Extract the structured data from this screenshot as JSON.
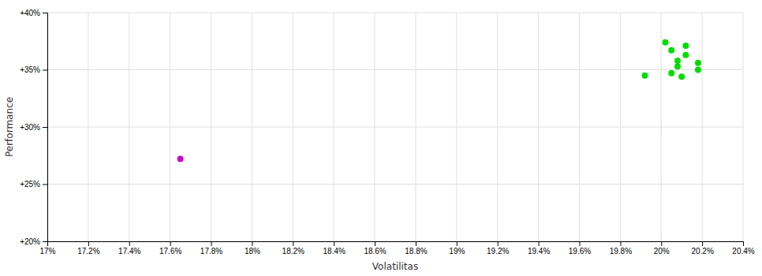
{
  "chart_data": {
    "type": "scatter",
    "xlabel": "Volatilitas",
    "ylabel": "Performance",
    "xlim": [
      0.17,
      0.204
    ],
    "ylim": [
      0.2,
      0.4
    ],
    "xticks": [
      {
        "value": 0.17,
        "label": "17%"
      },
      {
        "value": 0.172,
        "label": "17.2%"
      },
      {
        "value": 0.174,
        "label": "17.4%"
      },
      {
        "value": 0.176,
        "label": "17.6%"
      },
      {
        "value": 0.178,
        "label": "17.8%"
      },
      {
        "value": 0.18,
        "label": "18%"
      },
      {
        "value": 0.182,
        "label": "18.2%"
      },
      {
        "value": 0.184,
        "label": "18.4%"
      },
      {
        "value": 0.186,
        "label": "18.6%"
      },
      {
        "value": 0.188,
        "label": "18.8%"
      },
      {
        "value": 0.19,
        "label": "19%"
      },
      {
        "value": 0.192,
        "label": "19.2%"
      },
      {
        "value": 0.194,
        "label": "19.4%"
      },
      {
        "value": 0.196,
        "label": "19.6%"
      },
      {
        "value": 0.198,
        "label": "19.8%"
      },
      {
        "value": 0.2,
        "label": "20%"
      },
      {
        "value": 0.202,
        "label": "20.2%"
      },
      {
        "value": 0.204,
        "label": "20.4%"
      }
    ],
    "yticks": [
      {
        "value": 0.2,
        "label": "+20%"
      },
      {
        "value": 0.25,
        "label": "+25%"
      },
      {
        "value": 0.3,
        "label": "+30%"
      },
      {
        "value": 0.35,
        "label": "+35%"
      },
      {
        "value": 0.4,
        "label": "+40%"
      }
    ],
    "grid": true,
    "series": [
      {
        "color": "#00dd00",
        "x": [
          0.2002,
          0.2012,
          0.2005,
          0.2012,
          0.2008,
          0.2018,
          0.2008,
          0.2018,
          0.2005,
          0.1992,
          0.201
        ],
        "values": [
          0.374,
          0.371,
          0.367,
          0.363,
          0.358,
          0.356,
          0.353,
          0.35,
          0.347,
          0.345,
          0.344
        ]
      },
      {
        "color": "#cc00cc",
        "x": [
          0.1765
        ],
        "values": [
          0.272
        ]
      }
    ]
  }
}
